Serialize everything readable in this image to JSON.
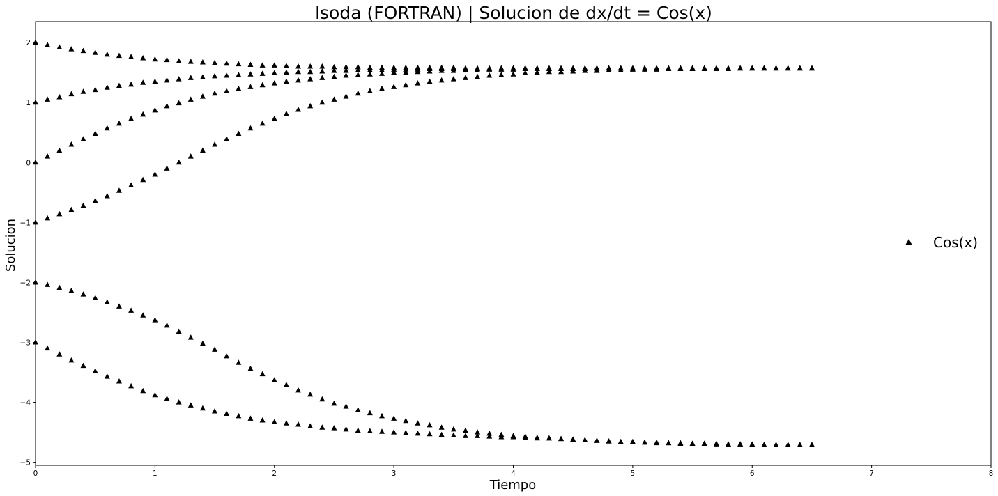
{
  "chart_data": {
    "type": "scatter",
    "title": "lsoda (FORTRAN) | Solucion de dx/dt = Cos(x)",
    "xlabel": "Tiempo",
    "ylabel": "Solucion",
    "xlim": [
      0,
      8
    ],
    "ylim": [
      -5.05,
      2.35
    ],
    "xticks": [
      0,
      1,
      2,
      3,
      4,
      5,
      6,
      7,
      8
    ],
    "yticks": [
      -5,
      -4,
      -3,
      -2,
      -1,
      0,
      1,
      2
    ],
    "xtick_labels": [
      "0",
      "1",
      "2",
      "3",
      "4",
      "5",
      "6",
      "7",
      "8"
    ],
    "ytick_labels": [
      "−5",
      "−4",
      "−3",
      "−2",
      "−1",
      "0",
      "1",
      "2"
    ],
    "grid": false,
    "marker": "triangle-up",
    "color": "#000000",
    "legend": {
      "entries": [
        "Cos(x)"
      ],
      "placement": "center-right"
    },
    "x": [
      0.0,
      0.1,
      0.2,
      0.3,
      0.4,
      0.5,
      0.6,
      0.7,
      0.8,
      0.9,
      1.0,
      1.1,
      1.2,
      1.3,
      1.4,
      1.5,
      1.6,
      1.7,
      1.8,
      1.9,
      2.0,
      2.1,
      2.2,
      2.3,
      2.4,
      2.5,
      2.6,
      2.7,
      2.8,
      2.9,
      3.0,
      3.1,
      3.2,
      3.3,
      3.4,
      3.5,
      3.6,
      3.7,
      3.8,
      3.9,
      4.0,
      4.1,
      4.2,
      4.3,
      4.4,
      4.5,
      4.6,
      4.7,
      4.8,
      4.9,
      5.0,
      5.1,
      5.2,
      5.3,
      5.4,
      5.5,
      5.6,
      5.7,
      5.8,
      5.9,
      6.0,
      6.1,
      6.2,
      6.3,
      6.4,
      6.5
    ],
    "series": [
      {
        "values": [
          2.0,
          1.96,
          1.92,
          1.89,
          1.86,
          1.83,
          1.8,
          1.78,
          1.76,
          1.74,
          1.72,
          1.71,
          1.69,
          1.68,
          1.67,
          1.66,
          1.65,
          1.64,
          1.63,
          1.62,
          1.62,
          1.61,
          1.6,
          1.6,
          1.6,
          1.59,
          1.59,
          1.59,
          1.58,
          1.58,
          1.58,
          1.58,
          1.58,
          1.58,
          1.58,
          1.58,
          1.57,
          1.57,
          1.57,
          1.57,
          1.57,
          1.57,
          1.57,
          1.57,
          1.57,
          1.57,
          1.57,
          1.57,
          1.57,
          1.57,
          1.57,
          1.57,
          1.57,
          1.57,
          1.57,
          1.57,
          1.57,
          1.57,
          1.57,
          1.57,
          1.57,
          1.57,
          1.57,
          1.57,
          1.57,
          1.57
        ]
      },
      {
        "values": [
          1.0,
          1.05,
          1.09,
          1.14,
          1.18,
          1.21,
          1.25,
          1.28,
          1.3,
          1.33,
          1.35,
          1.37,
          1.39,
          1.41,
          1.42,
          1.44,
          1.45,
          1.46,
          1.47,
          1.48,
          1.49,
          1.5,
          1.51,
          1.51,
          1.52,
          1.53,
          1.53,
          1.54,
          1.54,
          1.54,
          1.55,
          1.55,
          1.55,
          1.56,
          1.56,
          1.56,
          1.56,
          1.56,
          1.56,
          1.57,
          1.57,
          1.57,
          1.57,
          1.57,
          1.57,
          1.57,
          1.57,
          1.57,
          1.57,
          1.57,
          1.57,
          1.57,
          1.57,
          1.57,
          1.57,
          1.57,
          1.57,
          1.57,
          1.57,
          1.57,
          1.57,
          1.57,
          1.57,
          1.57,
          1.57,
          1.57
        ]
      },
      {
        "values": [
          0.0,
          0.1,
          0.2,
          0.3,
          0.39,
          0.48,
          0.57,
          0.65,
          0.73,
          0.8,
          0.87,
          0.94,
          0.99,
          1.05,
          1.1,
          1.15,
          1.19,
          1.23,
          1.26,
          1.29,
          1.32,
          1.35,
          1.37,
          1.39,
          1.41,
          1.43,
          1.45,
          1.46,
          1.47,
          1.48,
          1.5,
          1.5,
          1.51,
          1.52,
          1.53,
          1.53,
          1.54,
          1.54,
          1.55,
          1.55,
          1.55,
          1.56,
          1.56,
          1.56,
          1.56,
          1.56,
          1.56,
          1.57,
          1.57,
          1.57,
          1.57,
          1.57,
          1.57,
          1.57,
          1.57,
          1.57,
          1.57,
          1.57,
          1.57,
          1.57,
          1.57,
          1.57,
          1.57,
          1.57,
          1.57,
          1.57
        ]
      },
      {
        "values": [
          -1.0,
          -0.93,
          -0.86,
          -0.79,
          -0.72,
          -0.64,
          -0.56,
          -0.47,
          -0.38,
          -0.29,
          -0.2,
          -0.1,
          0.0,
          0.1,
          0.2,
          0.3,
          0.39,
          0.48,
          0.57,
          0.65,
          0.73,
          0.81,
          0.88,
          0.94,
          1.0,
          1.05,
          1.1,
          1.15,
          1.19,
          1.23,
          1.26,
          1.29,
          1.32,
          1.35,
          1.37,
          1.39,
          1.41,
          1.43,
          1.45,
          1.46,
          1.47,
          1.49,
          1.5,
          1.51,
          1.51,
          1.52,
          1.53,
          1.53,
          1.54,
          1.54,
          1.55,
          1.55,
          1.55,
          1.56,
          1.56,
          1.56,
          1.56,
          1.56,
          1.56,
          1.57,
          1.57,
          1.57,
          1.57,
          1.57,
          1.57,
          1.57
        ]
      },
      {
        "values": [
          -2.0,
          -2.04,
          -2.09,
          -2.14,
          -2.2,
          -2.26,
          -2.33,
          -2.4,
          -2.47,
          -2.55,
          -2.63,
          -2.72,
          -2.82,
          -2.92,
          -3.02,
          -3.12,
          -3.23,
          -3.34,
          -3.44,
          -3.53,
          -3.63,
          -3.71,
          -3.8,
          -3.87,
          -3.95,
          -4.02,
          -4.07,
          -4.13,
          -4.18,
          -4.23,
          -4.27,
          -4.31,
          -4.35,
          -4.38,
          -4.42,
          -4.45,
          -4.47,
          -4.5,
          -4.52,
          -4.54,
          -4.56,
          -4.57,
          -4.59,
          -4.6,
          -4.61,
          -4.62,
          -4.63,
          -4.64,
          -4.65,
          -4.66,
          -4.66,
          -4.67,
          -4.68,
          -4.68,
          -4.69,
          -4.69,
          -4.69,
          -4.7,
          -4.7,
          -4.7,
          -4.71,
          -4.71,
          -4.71,
          -4.71,
          -4.71,
          -4.71
        ]
      },
      {
        "values": [
          -3.0,
          -3.1,
          -3.2,
          -3.3,
          -3.39,
          -3.48,
          -3.57,
          -3.65,
          -3.73,
          -3.81,
          -3.88,
          -3.94,
          -4.0,
          -4.05,
          -4.1,
          -4.15,
          -4.19,
          -4.23,
          -4.27,
          -4.3,
          -4.33,
          -4.35,
          -4.37,
          -4.4,
          -4.42,
          -4.43,
          -4.45,
          -4.47,
          -4.48,
          -4.49,
          -4.5,
          -4.51,
          -4.52,
          -4.53,
          -4.54,
          -4.55,
          -4.56,
          -4.56,
          -4.57,
          -4.58,
          -4.58,
          -4.59,
          -4.6,
          -4.6,
          -4.61,
          -4.62,
          -4.63,
          -4.64,
          -4.65,
          -4.66,
          -4.66,
          -4.67,
          -4.67,
          -4.68,
          -4.68,
          -4.69,
          -4.69,
          -4.69,
          -4.7,
          -4.7,
          -4.7,
          -4.71,
          -4.71,
          -4.71,
          -4.71,
          -4.71
        ]
      }
    ]
  }
}
